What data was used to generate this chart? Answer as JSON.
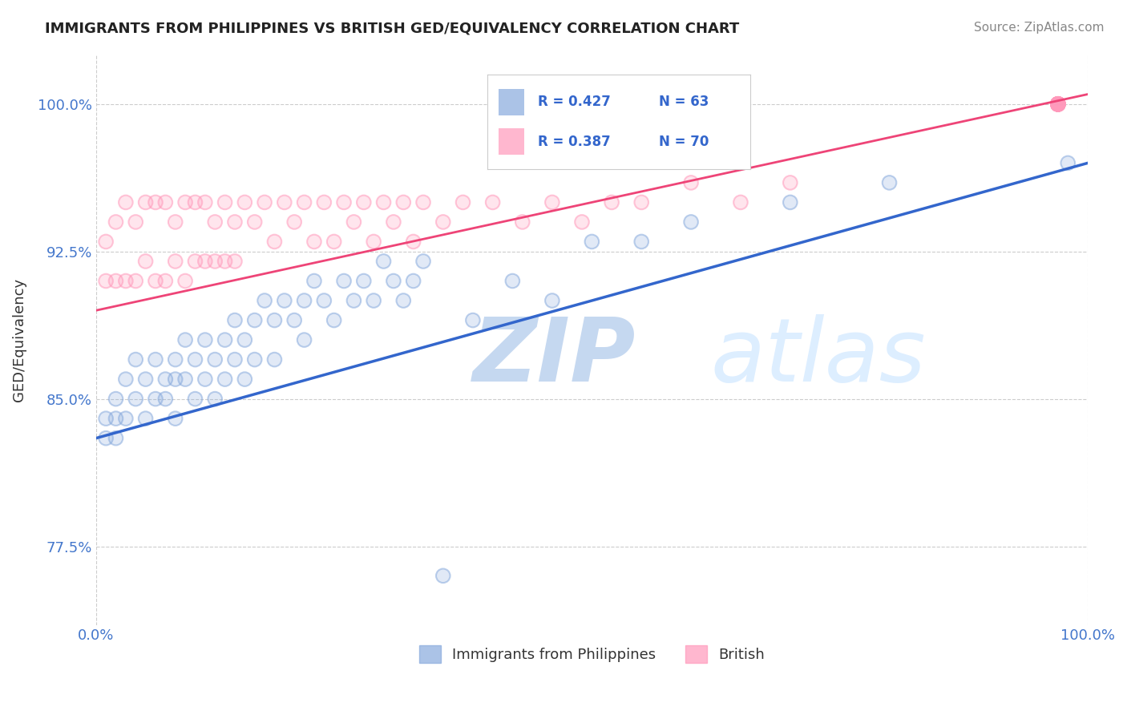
{
  "title": "IMMIGRANTS FROM PHILIPPINES VS BRITISH GED/EQUIVALENCY CORRELATION CHART",
  "source": "Source: ZipAtlas.com",
  "ylabel": "GED/Equivalency",
  "xlim": [
    0,
    100
  ],
  "ylim": [
    73.5,
    102.5
  ],
  "xtick_labels": [
    "0.0%",
    "100.0%"
  ],
  "yticks": [
    77.5,
    85.0,
    92.5,
    100.0
  ],
  "ytick_labels": [
    "77.5%",
    "85.0%",
    "92.5%",
    "100.0%"
  ],
  "blue_color": "#88aadd",
  "pink_color": "#ff99bb",
  "blue_line_color": "#3366cc",
  "pink_line_color": "#ee4477",
  "blue_line_x": [
    0,
    100
  ],
  "blue_line_y": [
    83.0,
    97.0
  ],
  "pink_line_x": [
    0,
    100
  ],
  "pink_line_y": [
    89.5,
    100.5
  ],
  "blue_scatter_x": [
    1,
    1,
    2,
    2,
    2,
    3,
    3,
    4,
    4,
    5,
    5,
    6,
    6,
    7,
    7,
    8,
    8,
    8,
    9,
    9,
    10,
    10,
    11,
    11,
    12,
    12,
    13,
    13,
    14,
    14,
    15,
    15,
    16,
    16,
    17,
    18,
    18,
    19,
    20,
    21,
    21,
    22,
    23,
    24,
    25,
    26,
    27,
    28,
    29,
    30,
    31,
    32,
    33,
    35,
    38,
    42,
    46,
    50,
    55,
    60,
    70,
    80,
    98
  ],
  "blue_scatter_y": [
    84,
    83,
    85,
    83,
    84,
    86,
    84,
    87,
    85,
    86,
    84,
    87,
    85,
    86,
    85,
    87,
    84,
    86,
    88,
    86,
    87,
    85,
    88,
    86,
    87,
    85,
    88,
    86,
    89,
    87,
    88,
    86,
    89,
    87,
    90,
    89,
    87,
    90,
    89,
    90,
    88,
    91,
    90,
    89,
    91,
    90,
    91,
    90,
    92,
    91,
    90,
    91,
    92,
    76,
    89,
    91,
    90,
    93,
    93,
    94,
    95,
    96,
    97
  ],
  "pink_scatter_x": [
    1,
    1,
    2,
    2,
    3,
    3,
    4,
    4,
    5,
    5,
    6,
    6,
    7,
    7,
    8,
    8,
    9,
    9,
    10,
    10,
    11,
    11,
    12,
    12,
    13,
    13,
    14,
    14,
    15,
    16,
    17,
    18,
    19,
    20,
    21,
    22,
    23,
    24,
    25,
    26,
    27,
    28,
    29,
    30,
    31,
    32,
    33,
    35,
    37,
    40,
    43,
    46,
    49,
    52,
    55,
    60,
    65,
    70,
    97,
    97,
    97,
    97,
    97,
    97,
    97,
    97,
    97,
    97,
    97,
    97
  ],
  "pink_scatter_y": [
    93,
    91,
    94,
    91,
    95,
    91,
    94,
    91,
    95,
    92,
    95,
    91,
    95,
    91,
    94,
    92,
    95,
    91,
    95,
    92,
    95,
    92,
    94,
    92,
    95,
    92,
    94,
    92,
    95,
    94,
    95,
    93,
    95,
    94,
    95,
    93,
    95,
    93,
    95,
    94,
    95,
    93,
    95,
    94,
    95,
    93,
    95,
    94,
    95,
    95,
    94,
    95,
    94,
    95,
    95,
    96,
    95,
    96,
    100,
    100,
    100,
    100,
    100,
    100,
    100,
    100,
    100,
    100,
    100,
    100
  ]
}
